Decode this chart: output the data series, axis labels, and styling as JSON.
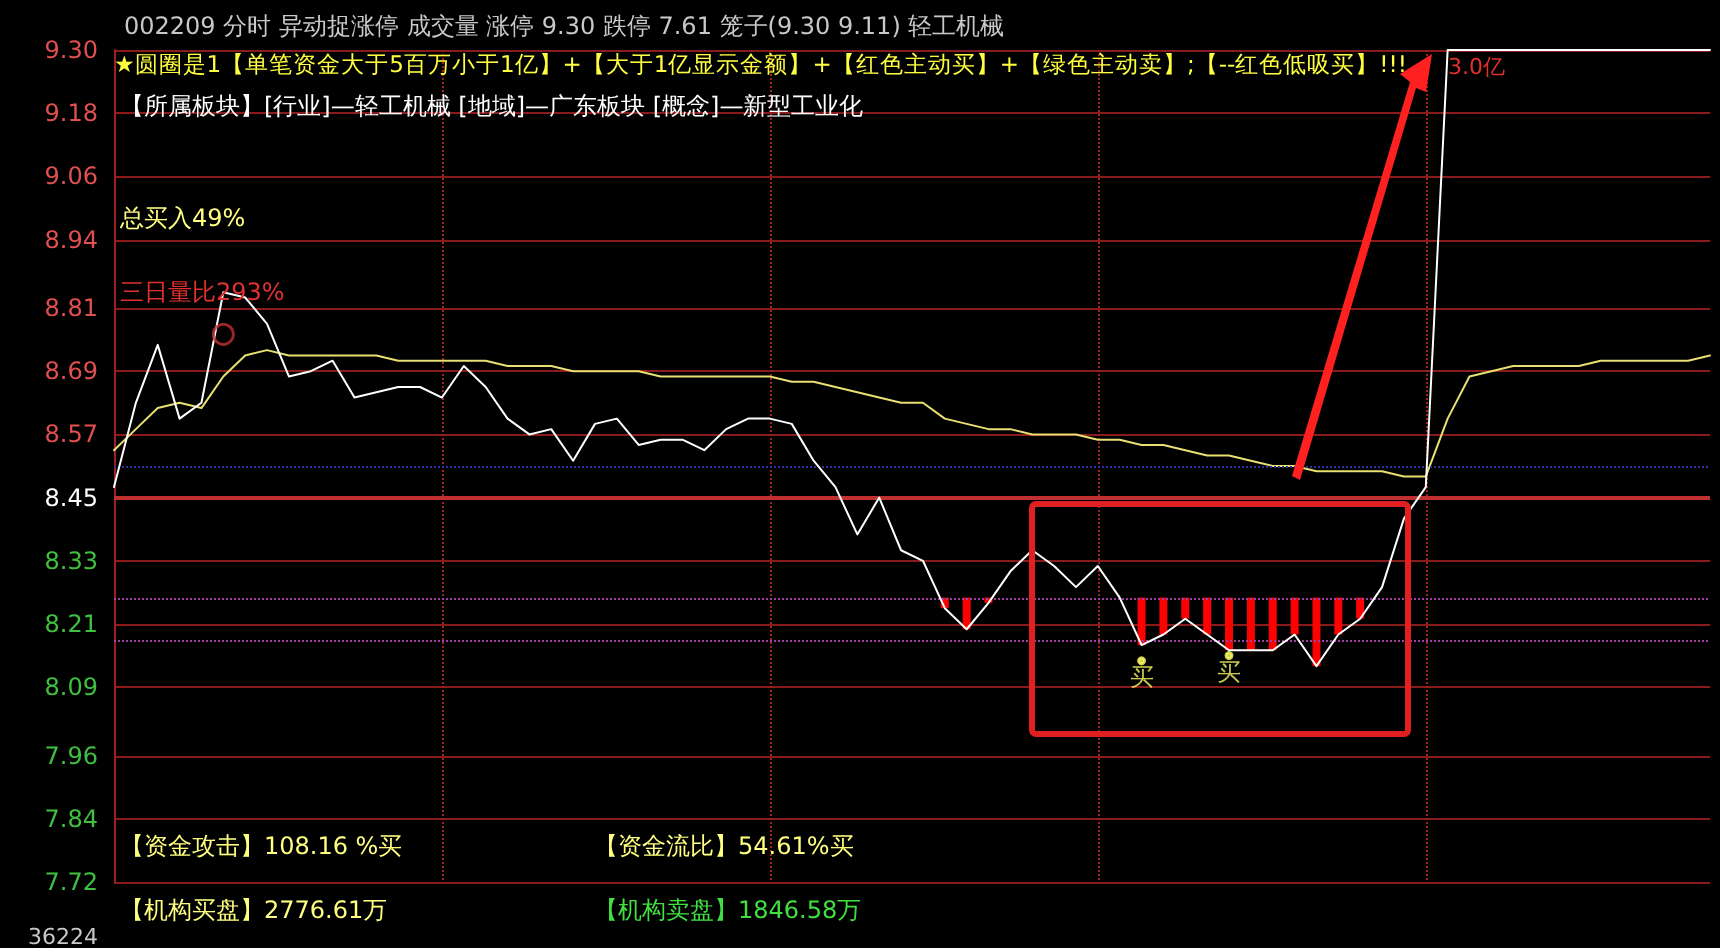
{
  "chart_data": {
    "type": "line",
    "categories": [
      null,
      null,
      null,
      null,
      null,
      null,
      null,
      null,
      null,
      null,
      null,
      null,
      null,
      null,
      null,
      null,
      null,
      null,
      null,
      null,
      null,
      null,
      null,
      null,
      null,
      null,
      null,
      null,
      null,
      null,
      null,
      null,
      null,
      null,
      null,
      null,
      null,
      null,
      null,
      null,
      null,
      null,
      null,
      null,
      null,
      null,
      null,
      null,
      null,
      null,
      null,
      null,
      null,
      null,
      null,
      null,
      null,
      null,
      null,
      null,
      null,
      null,
      null,
      null,
      null,
      null,
      null,
      null,
      null,
      null,
      null,
      null,
      null,
      null
    ],
    "series": [
      {
        "color": "#ffffff",
        "values": [
          8.47,
          8.63,
          8.74,
          8.6,
          8.63,
          8.84,
          8.83,
          8.78,
          8.68,
          8.69,
          8.71,
          8.64,
          8.65,
          8.66,
          8.66,
          8.64,
          8.7,
          8.66,
          8.6,
          8.57,
          8.58,
          8.52,
          8.59,
          8.6,
          8.55,
          8.56,
          8.56,
          8.54,
          8.58,
          8.6,
          8.6,
          8.59,
          8.52,
          8.47,
          8.38,
          8.45,
          8.35,
          8.33,
          8.24,
          8.2,
          8.25,
          8.31,
          8.35,
          8.32,
          8.28,
          8.32,
          8.26,
          8.17,
          8.19,
          8.22,
          8.19,
          8.16,
          8.16,
          8.16,
          8.19,
          8.13,
          8.19,
          8.22,
          8.28,
          8.41,
          8.47,
          9.3,
          9.3,
          9.3,
          9.3,
          9.3,
          9.3,
          9.3,
          9.3,
          9.3,
          9.3,
          9.3,
          9.3,
          9.3
        ]
      },
      {
        "type": "line",
        "color": "#e8e070",
        "values": [
          8.54,
          8.58,
          8.62,
          8.63,
          8.62,
          8.68,
          8.72,
          8.73,
          8.72,
          8.72,
          8.72,
          8.72,
          8.72,
          8.71,
          8.71,
          8.71,
          8.71,
          8.71,
          8.7,
          8.7,
          8.7,
          8.69,
          8.69,
          8.69,
          8.69,
          8.68,
          8.68,
          8.68,
          8.68,
          8.68,
          8.68,
          8.67,
          8.67,
          8.66,
          8.65,
          8.64,
          8.63,
          8.63,
          8.6,
          8.59,
          8.58,
          8.58,
          8.57,
          8.57,
          8.57,
          8.56,
          8.56,
          8.55,
          8.55,
          8.54,
          8.53,
          8.53,
          8.52,
          8.51,
          8.51,
          8.5,
          8.5,
          8.5,
          8.5,
          8.49,
          8.49,
          8.6,
          8.68,
          8.69,
          8.7,
          8.7,
          8.7,
          8.7,
          8.71,
          8.71,
          8.71,
          8.71,
          8.71,
          8.72
        ]
      },
      {
        "type": "bar",
        "color": "#ff0000",
        "base": [
          null,
          null,
          null,
          null,
          null,
          null,
          null,
          null,
          null,
          null,
          null,
          null,
          null,
          null,
          null,
          null,
          null,
          null,
          null,
          null,
          null,
          null,
          null,
          null,
          null,
          null,
          null,
          null,
          null,
          null,
          null,
          null,
          null,
          null,
          null,
          null,
          null,
          null,
          8.26,
          8.26,
          8.26,
          null,
          null,
          null,
          null,
          null,
          null,
          8.26,
          8.26,
          8.26,
          8.26,
          8.26,
          8.26,
          8.26,
          8.26,
          8.26,
          8.26,
          8.26,
          null,
          null,
          null,
          null,
          null,
          null,
          null,
          null,
          null,
          null,
          null,
          null,
          null,
          null,
          null,
          null
        ],
        "values": [
          null,
          null,
          null,
          null,
          null,
          null,
          null,
          null,
          null,
          null,
          null,
          null,
          null,
          null,
          null,
          null,
          null,
          null,
          null,
          null,
          null,
          null,
          null,
          null,
          null,
          null,
          null,
          null,
          null,
          null,
          null,
          null,
          null,
          null,
          null,
          null,
          null,
          null,
          -0.02,
          -0.06,
          -0.01,
          null,
          null,
          null,
          null,
          null,
          null,
          -0.09,
          -0.07,
          -0.04,
          -0.07,
          -0.1,
          -0.1,
          -0.1,
          -0.07,
          -0.13,
          -0.07,
          -0.04,
          null,
          null,
          null,
          null,
          null,
          null,
          null,
          null,
          null,
          null,
          null,
          null,
          null,
          null,
          null,
          null
        ]
      },
      {
        "type": "scatter",
        "marker": "circle",
        "color": "#c03030",
        "values": [
          null,
          null,
          null,
          null,
          null,
          8.76,
          null,
          null,
          null,
          null,
          null,
          null,
          null,
          null,
          null,
          null,
          null,
          null,
          null,
          null,
          null,
          null,
          null,
          null,
          null,
          null,
          null,
          null,
          null,
          null,
          null,
          null,
          null,
          null,
          null,
          null,
          null,
          null,
          null,
          null,
          null,
          null,
          null,
          null,
          null,
          null,
          null,
          null,
          null,
          null,
          null,
          null,
          null,
          null,
          null,
          null,
          null,
          null,
          null,
          null,
          null,
          null,
          null,
          null,
          null,
          null,
          null,
          null,
          null,
          null,
          null,
          null,
          null,
          null
        ]
      },
      {
        "type": "scatter",
        "marker": "none",
        "color": "#ffff66",
        "values": [
          null,
          null,
          null,
          null,
          null,
          null,
          null,
          null,
          null,
          null,
          null,
          null,
          null,
          null,
          null,
          null,
          null,
          null,
          null,
          null,
          null,
          null,
          null,
          null,
          null,
          null,
          null,
          null,
          null,
          null,
          null,
          null,
          null,
          null,
          null,
          null,
          null,
          null,
          null,
          null,
          null,
          null,
          null,
          null,
          null,
          null,
          null,
          8.14,
          null,
          null,
          null,
          8.15,
          null,
          null,
          null,
          null,
          null,
          null,
          null,
          null,
          null,
          null,
          null,
          null,
          null,
          null,
          null,
          null,
          null,
          null,
          null,
          null,
          null,
          null
        ],
        "value_labels": [
          null,
          null,
          null,
          null,
          null,
          null,
          null,
          null,
          null,
          null,
          null,
          null,
          null,
          null,
          null,
          null,
          null,
          null,
          null,
          null,
          null,
          null,
          null,
          null,
          null,
          null,
          null,
          null,
          null,
          null,
          null,
          null,
          null,
          null,
          null,
          null,
          null,
          null,
          null,
          null,
          null,
          null,
          null,
          null,
          null,
          null,
          null,
          "买",
          null,
          null,
          null,
          "买",
          null,
          null,
          null,
          null,
          null,
          null,
          null,
          null,
          null,
          null,
          null,
          null,
          null,
          null,
          null,
          null,
          null,
          null,
          null,
          null,
          null,
          null
        ]
      }
    ],
    "ylim": [
      7.72,
      9.3
    ],
    "yticks": [
      {
        "value": 9.3,
        "label": "9.30"
      },
      9.18,
      9.06,
      8.94,
      8.81,
      8.69,
      8.57,
      8.45,
      8.33,
      8.21,
      8.09,
      7.96,
      7.84,
      7.72
    ],
    "ref_lines": [
      {
        "axis": "y",
        "value": 8.45,
        "color": "#c03030",
        "line_style": "solid"
      },
      {
        "axis": "y",
        "value": 8.51,
        "color": "#3030a0",
        "line_style": "dotted"
      },
      {
        "axis": "y",
        "value": 8.26,
        "color": "#a040a0",
        "line_style": "dotted"
      },
      {
        "axis": "y",
        "value": 8.18,
        "color": "#a040a0",
        "line_style": "dotted"
      }
    ],
    "grid": true,
    "marker": "none",
    "line_style": "solid",
    "tick_labels": "y",
    "annotations": [
      "002209 分时 异动捉涨停 成交量 涨停 9.30 跌停 7.61 笼子(9.30 9.11) 轻工机械",
      "★圆圈是1【单笔资金大于5百万小于1亿】+【大于1亿显示金额】+【红色主动买】+【绿色主动卖】;【--红色低吸买】!!!",
      "【所属板块】[行业]—轻工机械 [地域]—广东板块 [概念]—新型工业化",
      "总买入49%",
      "三日量比293%",
      "3.0亿",
      "【资金攻击】108.16 %买",
      "【资金流比】54.61%买",
      "【机构买盘】2776.61万",
      "【机构卖盘】1846.58万",
      "36224"
    ]
  }
}
